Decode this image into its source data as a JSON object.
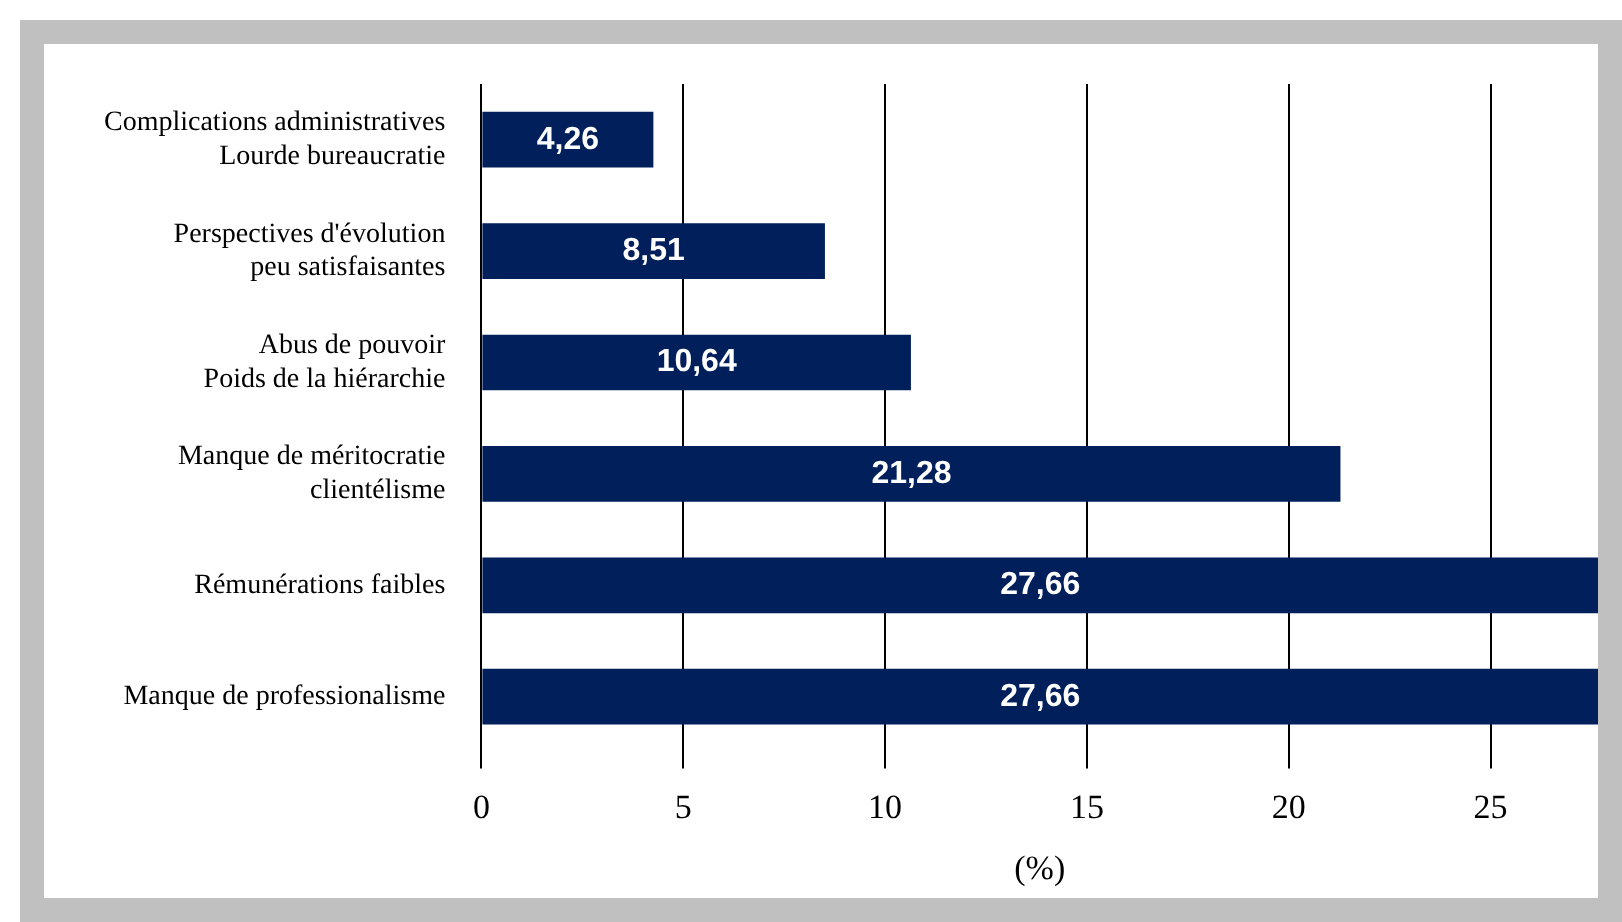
{
  "chart_data": {
    "type": "bar",
    "orientation": "horizontal",
    "xlabel": "(%)",
    "categories": [
      "Complications administratives\nLourde bureaucratie",
      "Perspectives d'évolution\npeu satisfaisantes",
      "Abus de pouvoir\nPoids de la hiérarchie",
      "Manque de méritocratie\nclientélisme",
      "Rémunérations faibles",
      "Manque de professionalisme"
    ],
    "values": [
      4.26,
      8.51,
      10.64,
      21.28,
      27.66,
      27.66
    ],
    "value_labels": [
      "4,26",
      "8,51",
      "10,64",
      "21,28",
      "27,66",
      "27,66"
    ],
    "color": "#001f5b",
    "xlim": [
      0,
      27.66
    ],
    "xticks": [
      0,
      5,
      10,
      15,
      20,
      25
    ],
    "grid": "x",
    "legend": false
  }
}
